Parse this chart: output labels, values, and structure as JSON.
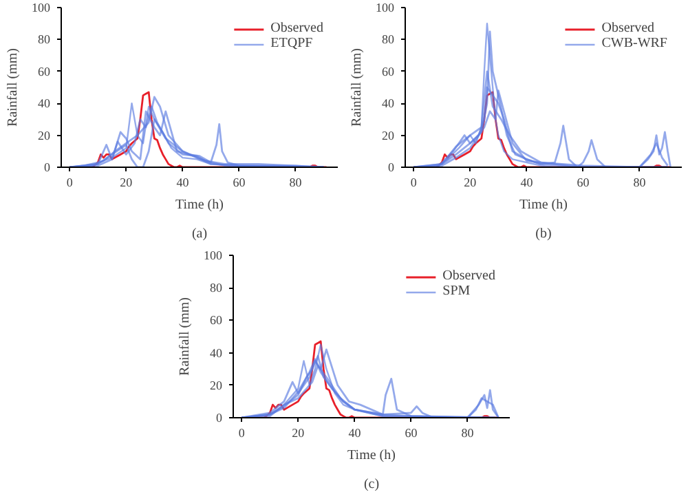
{
  "chart_data": [
    {
      "type": "line",
      "xlabel": "Time (h)",
      "ylabel": "Rainfall (mm)",
      "annotations": [
        "(a)"
      ],
      "xlim": [
        -3,
        95
      ],
      "ylim": [
        0,
        100
      ],
      "xticks": [
        0,
        20,
        40,
        60,
        80
      ],
      "yticks": [
        0,
        20,
        40,
        60,
        80,
        100
      ],
      "grid": false,
      "legend": "top right",
      "line_style": "solid",
      "series": [
        {
          "name": "Observed",
          "color": "#e8202a",
          "x": [
            0,
            8,
            10,
            11,
            12,
            13,
            14,
            15,
            16,
            18,
            20,
            21,
            22,
            24,
            25,
            26,
            27,
            28,
            29,
            30,
            31,
            32,
            33,
            34,
            35,
            36,
            37,
            38,
            39,
            40,
            42,
            50,
            60,
            70,
            80,
            85,
            86,
            87,
            88,
            91
          ],
          "values": [
            0,
            0,
            3,
            8,
            6,
            8,
            8,
            5,
            6,
            8,
            10,
            13,
            15,
            18,
            30,
            45,
            46,
            47,
            30,
            18,
            17,
            12,
            8,
            5,
            2,
            1,
            0,
            0,
            1,
            0,
            0,
            0,
            0,
            0,
            0,
            0,
            1,
            1,
            0,
            0
          ]
        },
        {
          "name": "ETQPF",
          "color": "#5a7be0",
          "x": [
            0,
            5,
            10,
            15,
            20,
            22,
            24,
            26,
            28,
            30,
            33,
            36,
            40,
            45,
            50,
            60,
            70,
            80,
            90
          ],
          "values": [
            0,
            1,
            3,
            6,
            12,
            40,
            20,
            15,
            38,
            30,
            22,
            12,
            6,
            5,
            2,
            1,
            1,
            1,
            0
          ]
        },
        {
          "color": "#5a7be0",
          "x": [
            0,
            8,
            12,
            16,
            20,
            24,
            28,
            30,
            32,
            35,
            40,
            45,
            50,
            55,
            60,
            70,
            90
          ],
          "values": [
            0,
            1,
            4,
            10,
            15,
            20,
            28,
            44,
            38,
            20,
            10,
            6,
            3,
            1,
            1,
            0,
            0
          ]
        },
        {
          "color": "#5a7be0",
          "x": [
            0,
            10,
            13,
            15,
            18,
            20,
            22,
            25,
            27,
            30,
            32,
            34,
            38,
            42,
            46,
            50,
            52,
            53,
            54,
            56,
            60,
            90
          ],
          "values": [
            0,
            2,
            14,
            5,
            22,
            18,
            10,
            5,
            35,
            25,
            20,
            35,
            10,
            8,
            7,
            3,
            14,
            27,
            10,
            3,
            1,
            0
          ]
        },
        {
          "color": "#5a7be0",
          "x": [
            0,
            10,
            15,
            17,
            20,
            23,
            25,
            27,
            29,
            31,
            35,
            40,
            45,
            48,
            55,
            67,
            90
          ],
          "values": [
            0,
            1,
            5,
            16,
            8,
            15,
            30,
            25,
            38,
            28,
            15,
            8,
            7,
            4,
            2,
            2,
            0
          ]
        },
        {
          "color": "#5a7be0",
          "x": [
            0,
            10,
            15,
            20,
            22,
            24,
            26,
            28,
            30,
            34,
            40,
            44,
            50,
            60,
            90
          ],
          "values": [
            0,
            2,
            8,
            14,
            5,
            0,
            0,
            10,
            30,
            18,
            10,
            7,
            2,
            1,
            0
          ]
        }
      ]
    },
    {
      "type": "line",
      "xlabel": "Time (h)",
      "ylabel": "Rainfall (mm)",
      "annotations": [
        "(b)"
      ],
      "xlim": [
        -3,
        95
      ],
      "ylim": [
        0,
        100
      ],
      "xticks": [
        0,
        20,
        40,
        60,
        80
      ],
      "yticks": [
        0,
        20,
        40,
        60,
        80,
        100
      ],
      "grid": false,
      "legend": "top right",
      "line_style": "solid",
      "series": [
        {
          "name": "Observed",
          "color": "#e8202a",
          "x": [
            0,
            8,
            10,
            11,
            12,
            13,
            14,
            15,
            16,
            18,
            20,
            21,
            22,
            24,
            25,
            26,
            27,
            28,
            29,
            30,
            31,
            32,
            33,
            34,
            35,
            36,
            37,
            38,
            39,
            40,
            42,
            50,
            60,
            70,
            80,
            85,
            86,
            87,
            88,
            91
          ],
          "values": [
            0,
            0,
            3,
            8,
            6,
            8,
            8,
            5,
            6,
            8,
            10,
            13,
            15,
            18,
            30,
            45,
            46,
            47,
            30,
            18,
            17,
            12,
            8,
            5,
            2,
            1,
            0,
            0,
            1,
            0,
            0,
            0,
            0,
            0,
            0,
            0,
            1,
            1,
            0,
            0
          ]
        },
        {
          "name": "CWB-WRF",
          "color": "#5a7be0",
          "x": [
            0,
            8,
            12,
            16,
            20,
            22,
            24,
            25,
            26,
            27,
            28,
            29,
            30,
            32,
            35,
            40,
            45,
            50,
            55,
            60,
            90
          ],
          "values": [
            0,
            0,
            5,
            12,
            20,
            15,
            25,
            60,
            90,
            70,
            50,
            30,
            20,
            10,
            5,
            3,
            1,
            0,
            0,
            0,
            0
          ]
        },
        {
          "color": "#5a7be0",
          "x": [
            0,
            9,
            14,
            18,
            20,
            24,
            26,
            27,
            28,
            30,
            33,
            36,
            40,
            45,
            50,
            52,
            53,
            55,
            58,
            90
          ],
          "values": [
            0,
            1,
            10,
            20,
            15,
            22,
            40,
            85,
            60,
            45,
            20,
            8,
            5,
            2,
            3,
            15,
            26,
            5,
            0,
            0
          ]
        },
        {
          "color": "#5a7be0",
          "x": [
            0,
            10,
            15,
            20,
            23,
            25,
            26,
            28,
            30,
            32,
            35,
            40,
            45,
            58,
            60,
            62,
            63,
            65,
            68,
            90
          ],
          "values": [
            0,
            2,
            8,
            15,
            20,
            30,
            50,
            45,
            40,
            30,
            10,
            5,
            2,
            0,
            3,
            10,
            17,
            5,
            0,
            0
          ]
        },
        {
          "color": "#5a7be0",
          "x": [
            0,
            10,
            15,
            20,
            25,
            27,
            29,
            30,
            35,
            40,
            50,
            60,
            80,
            83,
            85,
            86,
            87,
            88,
            89,
            90,
            91
          ],
          "values": [
            0,
            1,
            6,
            12,
            25,
            35,
            30,
            48,
            15,
            4,
            2,
            0,
            0,
            5,
            10,
            20,
            8,
            12,
            22,
            10,
            0
          ]
        },
        {
          "color": "#5a7be0",
          "x": [
            0,
            10,
            15,
            20,
            24,
            26,
            28,
            31,
            34,
            38,
            45,
            60,
            80,
            84,
            86,
            88,
            90
          ],
          "values": [
            0,
            2,
            13,
            20,
            25,
            60,
            38,
            30,
            20,
            10,
            3,
            1,
            0,
            8,
            15,
            6,
            1
          ]
        }
      ]
    },
    {
      "type": "line",
      "xlabel": "Time (h)",
      "ylabel": "Rainfall (mm)",
      "annotations": [
        "(c)"
      ],
      "xlim": [
        -3,
        95
      ],
      "ylim": [
        0,
        100
      ],
      "xticks": [
        0,
        20,
        40,
        60,
        80
      ],
      "yticks": [
        0,
        20,
        40,
        60,
        80,
        100
      ],
      "grid": false,
      "legend": "top right",
      "line_style": "solid",
      "series": [
        {
          "name": "Observed",
          "color": "#e8202a",
          "x": [
            0,
            8,
            10,
            11,
            12,
            13,
            14,
            15,
            16,
            18,
            20,
            21,
            22,
            24,
            25,
            26,
            27,
            28,
            29,
            30,
            31,
            32,
            33,
            34,
            35,
            36,
            37,
            38,
            39,
            40,
            42,
            50,
            60,
            70,
            80,
            85,
            86,
            87,
            88,
            91
          ],
          "values": [
            0,
            0,
            3,
            8,
            6,
            8,
            8,
            5,
            6,
            8,
            10,
            13,
            15,
            18,
            30,
            45,
            46,
            47,
            30,
            18,
            17,
            12,
            8,
            5,
            2,
            1,
            0,
            0,
            1,
            0,
            0,
            0,
            0,
            0,
            0,
            0,
            1,
            1,
            0,
            0
          ]
        },
        {
          "name": "SPM",
          "color": "#5a7be0",
          "x": [
            0,
            10,
            15,
            20,
            22,
            24,
            26,
            28,
            30,
            33,
            36,
            40,
            45,
            50,
            60,
            90
          ],
          "values": [
            0,
            2,
            8,
            18,
            35,
            20,
            30,
            45,
            30,
            15,
            8,
            5,
            3,
            1,
            1,
            0
          ]
        },
        {
          "color": "#5a7be0",
          "x": [
            0,
            10,
            15,
            18,
            20,
            24,
            26,
            28,
            30,
            34,
            38,
            42,
            50,
            51,
            53,
            55,
            60,
            90
          ],
          "values": [
            0,
            3,
            10,
            22,
            15,
            25,
            35,
            30,
            42,
            20,
            10,
            8,
            2,
            14,
            24,
            5,
            1,
            0
          ]
        },
        {
          "color": "#5a7be0",
          "x": [
            0,
            10,
            14,
            20,
            23,
            25,
            27,
            29,
            32,
            36,
            40,
            50,
            60,
            62,
            64,
            68,
            90
          ],
          "values": [
            0,
            2,
            6,
            14,
            25,
            30,
            38,
            25,
            18,
            10,
            5,
            2,
            3,
            7,
            3,
            0,
            0
          ]
        },
        {
          "color": "#5a7be0",
          "x": [
            0,
            10,
            15,
            20,
            25,
            27,
            30,
            35,
            40,
            50,
            60,
            80,
            84,
            86,
            87,
            88,
            89,
            91
          ],
          "values": [
            0,
            1,
            8,
            12,
            22,
            32,
            25,
            12,
            5,
            2,
            1,
            0,
            8,
            14,
            6,
            17,
            5,
            0
          ]
        },
        {
          "color": "#5a7be0",
          "x": [
            0,
            10,
            15,
            20,
            24,
            26,
            28,
            32,
            36,
            40,
            50,
            80,
            83,
            85,
            87,
            89,
            91
          ],
          "values": [
            0,
            2,
            6,
            16,
            28,
            36,
            28,
            18,
            10,
            5,
            1,
            0,
            5,
            12,
            10,
            8,
            0
          ]
        }
      ]
    }
  ]
}
